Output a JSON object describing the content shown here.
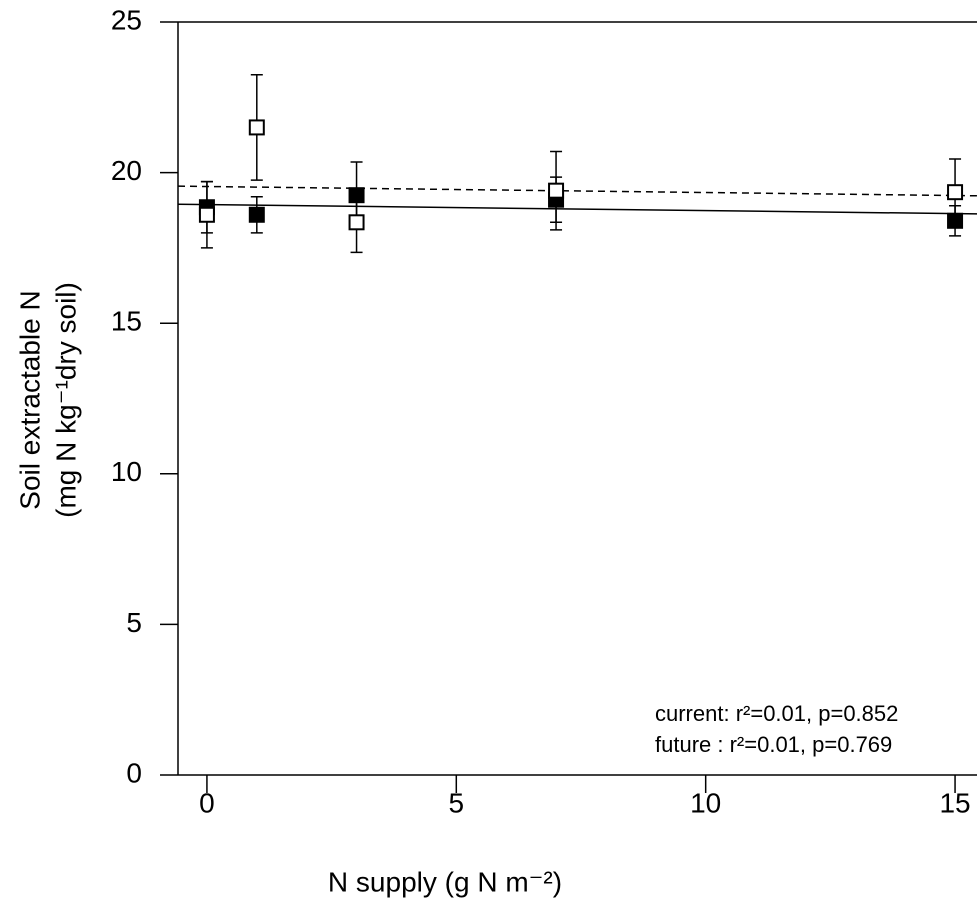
{
  "chart_data": {
    "type": "scatter",
    "x_label": "N supply (g N m⁻²)",
    "y_label": [
      "Soil extractable N",
      "(mg N kg⁻¹dry soil)"
    ],
    "xlim": [
      -0.58,
      15.44
    ],
    "ylim": [
      0,
      25
    ],
    "xticks": [
      0,
      5,
      10,
      15
    ],
    "yticks": [
      0,
      5,
      10,
      15,
      20,
      25
    ],
    "series": [
      {
        "marker": "filled",
        "color": "#000000",
        "x": [
          0,
          1,
          3,
          7,
          15
        ],
        "values": [
          18.85,
          18.6,
          19.25,
          19.1,
          18.4
        ],
        "errors": [
          0.85,
          0.6,
          1.1,
          0.75,
          0.5
        ],
        "fit_x": [
          -0.58,
          15.44
        ],
        "fit_y": [
          18.95,
          18.63
        ],
        "fit_style": "solid"
      },
      {
        "marker": "open",
        "color": "#000000",
        "x": [
          0,
          1,
          3,
          7,
          15
        ],
        "values": [
          18.6,
          21.5,
          18.35,
          19.4,
          19.35
        ],
        "errors": [
          1.1,
          1.75,
          1.0,
          1.3,
          1.1
        ],
        "fit_x": [
          -0.58,
          15.44
        ],
        "fit_y": [
          19.55,
          19.23
        ],
        "fit_style": "dashed"
      }
    ],
    "annotations": [
      "current: r²=0.01, p=0.852",
      "future : r²=0.01, p=0.769"
    ]
  }
}
